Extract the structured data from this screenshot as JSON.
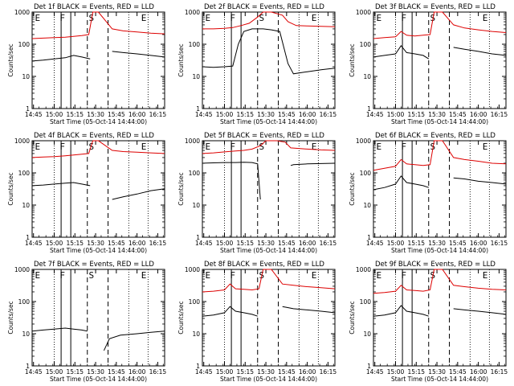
{
  "colors": {
    "events": "#000000",
    "lld": "#dd0000",
    "background": "#ffffff"
  },
  "chart_data": [
    {
      "type": "line",
      "title": "Det 1f BLACK = Events, RED = LLD",
      "xlabel": "Start Time (05-Oct-14 14:44:00)",
      "ylabel": "Counts/sec",
      "yscale": "log",
      "ylim": [
        1,
        1000
      ],
      "xlim": [
        "14:44",
        "16:20"
      ],
      "xticks": [
        "14:45",
        "15:00",
        "15:15",
        "15:30",
        "15:45",
        "16:00",
        "16:15"
      ],
      "yticks": [
        "1",
        "10",
        "100",
        "1000"
      ],
      "markers": [
        {
          "label": "E",
          "time": "14:46"
        },
        {
          "label": "F",
          "time": "15:04"
        },
        {
          "label": "S",
          "time": "15:25"
        },
        {
          "label": "E",
          "time": "16:03"
        }
      ],
      "series": [
        {
          "name": "Events",
          "color": "#000000",
          "x": [
            "14:44",
            "14:52",
            "15:00",
            "15:08",
            "15:14",
            "15:20",
            "15:26",
            "15:34",
            "15:36",
            "15:42",
            "15:50",
            "16:00",
            "16:10",
            "16:20"
          ],
          "y": [
            30,
            32,
            35,
            38,
            45,
            40,
            35,
            null,
            null,
            60,
            55,
            50,
            45,
            40
          ]
        },
        {
          "name": "LLD",
          "color": "#dd0000",
          "x": [
            "14:44",
            "14:52",
            "15:00",
            "15:08",
            "15:14",
            "15:20",
            "15:25",
            "15:28",
            "15:32",
            "15:42",
            "15:50",
            "16:00",
            "16:10",
            "16:20"
          ],
          "y": [
            150,
            155,
            160,
            165,
            175,
            185,
            200,
            1000,
            1000,
            300,
            260,
            240,
            220,
            210
          ]
        }
      ]
    },
    {
      "type": "line",
      "title": "Det 2f BLACK = Events, RED = LLD",
      "xlabel": "Start Time (05-Oct-14 14:44:00)",
      "ylabel": "Counts/sec",
      "yscale": "log",
      "ylim": [
        1,
        1000
      ],
      "xlim": [
        "14:44",
        "16:20"
      ],
      "xticks": [
        "14:45",
        "15:00",
        "15:15",
        "15:30",
        "15:45",
        "16:00",
        "16:15"
      ],
      "yticks": [
        "1",
        "10",
        "100",
        "1000"
      ],
      "markers": [
        {
          "label": "E",
          "time": "14:46"
        },
        {
          "label": "F",
          "time": "15:04"
        },
        {
          "label": "S",
          "time": "15:25"
        },
        {
          "label": "E",
          "time": "16:03"
        }
      ],
      "series": [
        {
          "name": "Events",
          "color": "#000000",
          "x": [
            "14:44",
            "14:52",
            "15:00",
            "15:06",
            "15:10",
            "15:14",
            "15:20",
            "15:28",
            "15:34",
            "15:40",
            "15:46",
            "15:50",
            "16:00",
            "16:10",
            "16:20"
          ],
          "y": [
            20,
            19,
            20,
            21,
            100,
            250,
            300,
            300,
            280,
            250,
            25,
            12,
            14,
            16,
            18
          ]
        },
        {
          "name": "LLD",
          "color": "#dd0000",
          "x": [
            "14:44",
            "14:52",
            "15:00",
            "15:06",
            "15:12",
            "15:18",
            "15:24",
            "15:28",
            "15:34",
            "15:42",
            "15:46",
            "15:52",
            "16:00",
            "16:10",
            "16:20"
          ],
          "y": [
            300,
            300,
            310,
            330,
            380,
            450,
            700,
            1000,
            1000,
            800,
            500,
            380,
            370,
            360,
            350
          ]
        }
      ]
    },
    {
      "type": "line",
      "title": "Det 3f BLACK = Events, RED = LLD",
      "xlabel": "Start Time (05-Oct-14 14:44:00)",
      "ylabel": "Counts/sec",
      "yscale": "log",
      "ylim": [
        1,
        1000
      ],
      "xlim": [
        "14:44",
        "16:20"
      ],
      "xticks": [
        "14:45",
        "15:00",
        "15:15",
        "15:30",
        "15:45",
        "16:00",
        "16:15"
      ],
      "yticks": [
        "1",
        "10",
        "100",
        "1000"
      ],
      "markers": [
        {
          "label": "E",
          "time": "14:46"
        },
        {
          "label": "F",
          "time": "15:04"
        },
        {
          "label": "S",
          "time": "15:25"
        },
        {
          "label": "E",
          "time": "16:03"
        }
      ],
      "series": [
        {
          "name": "Events",
          "color": "#000000",
          "x": [
            "14:44",
            "14:52",
            "15:00",
            "15:04",
            "15:08",
            "15:14",
            "15:20",
            "15:24",
            "15:34",
            "15:36",
            "15:42",
            "15:50",
            "16:00",
            "16:10",
            "16:20"
          ],
          "y": [
            40,
            45,
            50,
            90,
            55,
            50,
            45,
            35,
            null,
            null,
            80,
            70,
            60,
            50,
            45
          ]
        },
        {
          "name": "LLD",
          "color": "#dd0000",
          "x": [
            "14:44",
            "14:52",
            "15:00",
            "15:04",
            "15:08",
            "15:14",
            "15:20",
            "15:25",
            "15:28",
            "15:34",
            "15:42",
            "15:50",
            "16:00",
            "16:10",
            "16:20"
          ],
          "y": [
            150,
            160,
            170,
            250,
            190,
            180,
            190,
            200,
            1000,
            1000,
            400,
            320,
            280,
            250,
            230
          ]
        }
      ]
    },
    {
      "type": "line",
      "title": "Det 4f BLACK = Events, RED = LLD",
      "xlabel": "Start Time (05-Oct-14 14:44:00)",
      "ylabel": "Counts/sec",
      "yscale": "log",
      "ylim": [
        1,
        1000
      ],
      "xlim": [
        "14:44",
        "16:20"
      ],
      "xticks": [
        "14:45",
        "15:00",
        "15:15",
        "15:30",
        "15:45",
        "16:00",
        "16:15"
      ],
      "yticks": [
        "1",
        "10",
        "100",
        "1000"
      ],
      "markers": [
        {
          "label": "E",
          "time": "14:46"
        },
        {
          "label": "F",
          "time": "15:04"
        },
        {
          "label": "S",
          "time": "15:25"
        },
        {
          "label": "E",
          "time": "16:03"
        }
      ],
      "series": [
        {
          "name": "Events",
          "color": "#000000",
          "x": [
            "14:44",
            "14:52",
            "15:00",
            "15:08",
            "15:14",
            "15:20",
            "15:26",
            "15:34",
            "15:36",
            "15:42",
            "15:50",
            "16:00",
            "16:10",
            "16:20"
          ],
          "y": [
            40,
            42,
            45,
            48,
            50,
            45,
            40,
            null,
            null,
            15,
            18,
            22,
            28,
            32
          ]
        },
        {
          "name": "LLD",
          "color": "#dd0000",
          "x": [
            "14:44",
            "14:52",
            "15:00",
            "15:08",
            "15:14",
            "15:20",
            "15:25",
            "15:28",
            "15:32",
            "15:42",
            "15:50",
            "16:00",
            "16:10",
            "16:20"
          ],
          "y": [
            300,
            310,
            320,
            340,
            360,
            380,
            400,
            1000,
            1000,
            500,
            460,
            440,
            420,
            400
          ]
        }
      ]
    },
    {
      "type": "line",
      "title": "Det 5f BLACK = Events, RED = LLD",
      "xlabel": "Start Time (05-Oct-14 14:44:00)",
      "ylabel": "Counts/sec",
      "yscale": "log",
      "ylim": [
        1,
        1000
      ],
      "xlim": [
        "14:44",
        "16:20"
      ],
      "xticks": [
        "14:45",
        "15:00",
        "15:15",
        "15:30",
        "15:45",
        "16:00",
        "16:15"
      ],
      "yticks": [
        "1",
        "10",
        "100",
        "1000"
      ],
      "markers": [
        {
          "label": "E",
          "time": "14:46"
        },
        {
          "label": "F",
          "time": "15:04"
        },
        {
          "label": "S",
          "time": "15:25"
        },
        {
          "label": "E",
          "time": "16:03"
        }
      ],
      "series": [
        {
          "name": "Events",
          "color": "#000000",
          "x": [
            "14:44",
            "14:52",
            "15:00",
            "15:08",
            "15:14",
            "15:20",
            "15:24",
            "15:26",
            "15:44",
            "15:48",
            "15:50",
            "16:00",
            "16:10",
            "16:20"
          ],
          "y": [
            200,
            205,
            210,
            210,
            215,
            210,
            190,
            15,
            null,
            170,
            180,
            190,
            195,
            200
          ]
        },
        {
          "name": "LLD",
          "color": "#dd0000",
          "x": [
            "14:44",
            "14:52",
            "15:00",
            "15:08",
            "15:14",
            "15:20",
            "15:26",
            "15:30",
            "15:38",
            "15:44",
            "15:48",
            "16:00",
            "16:10",
            "16:20"
          ],
          "y": [
            400,
            420,
            450,
            480,
            500,
            550,
            700,
            1000,
            1000,
            900,
            600,
            550,
            520,
            500
          ]
        }
      ]
    },
    {
      "type": "line",
      "title": "Det 6f BLACK = Events, RED = LLD",
      "xlabel": "Start Time (05-Oct-14 14:44:00)",
      "ylabel": "Counts/sec",
      "yscale": "log",
      "ylim": [
        1,
        1000
      ],
      "xlim": [
        "14:44",
        "16:20"
      ],
      "xticks": [
        "14:45",
        "15:00",
        "15:15",
        "15:30",
        "15:45",
        "16:00",
        "16:15"
      ],
      "yticks": [
        "1",
        "10",
        "100",
        "1000"
      ],
      "markers": [
        {
          "label": "E",
          "time": "14:46"
        },
        {
          "label": "F",
          "time": "15:04"
        },
        {
          "label": "S",
          "time": "15:25"
        },
        {
          "label": "E",
          "time": "16:03"
        }
      ],
      "series": [
        {
          "name": "Events",
          "color": "#000000",
          "x": [
            "14:44",
            "14:52",
            "15:00",
            "15:04",
            "15:08",
            "15:14",
            "15:20",
            "15:24",
            "15:34",
            "15:36",
            "15:42",
            "15:50",
            "16:00",
            "16:10",
            "16:20"
          ],
          "y": [
            30,
            35,
            45,
            80,
            50,
            45,
            40,
            35,
            null,
            null,
            70,
            65,
            55,
            50,
            45
          ]
        },
        {
          "name": "LLD",
          "color": "#dd0000",
          "x": [
            "14:44",
            "14:52",
            "15:00",
            "15:04",
            "15:08",
            "15:14",
            "15:20",
            "15:25",
            "15:28",
            "15:34",
            "15:42",
            "15:50",
            "16:00",
            "16:10",
            "16:20"
          ],
          "y": [
            120,
            140,
            160,
            260,
            190,
            180,
            170,
            180,
            1000,
            1000,
            300,
            260,
            230,
            200,
            190
          ]
        }
      ]
    },
    {
      "type": "line",
      "title": "Det 7f BLACK = Events, RED = LLD",
      "xlabel": "Start Time (05-Oct-14 14:44:00)",
      "ylabel": "Counts/sec",
      "yscale": "log",
      "ylim": [
        1,
        1000
      ],
      "xlim": [
        "14:44",
        "16:20"
      ],
      "xticks": [
        "14:45",
        "15:00",
        "15:15",
        "15:30",
        "15:45",
        "16:00",
        "16:15"
      ],
      "yticks": [
        "1",
        "10",
        "100",
        "1000"
      ],
      "markers": [
        {
          "label": "E",
          "time": "14:46"
        },
        {
          "label": "F",
          "time": "15:04"
        },
        {
          "label": "S",
          "time": "15:25"
        },
        {
          "label": "E",
          "time": "16:03"
        }
      ],
      "series": [
        {
          "name": "Events",
          "color": "#000000",
          "x": [
            "14:44",
            "14:52",
            "15:00",
            "15:08",
            "15:14",
            "15:20",
            "15:24",
            "15:34",
            "15:36",
            "15:40",
            "15:48",
            "16:00",
            "16:10",
            "16:20"
          ],
          "y": [
            12,
            13,
            14,
            15,
            14,
            13,
            12,
            null,
            3,
            7,
            9,
            10,
            11,
            12
          ]
        }
      ]
    },
    {
      "type": "line",
      "title": "Det 8f BLACK = Events, RED = LLD",
      "xlabel": "Start Time (05-Oct-14 14:44:00)",
      "ylabel": "Counts/sec",
      "yscale": "log",
      "ylim": [
        1,
        1000
      ],
      "xlim": [
        "14:44",
        "16:20"
      ],
      "xticks": [
        "14:45",
        "15:00",
        "15:15",
        "15:30",
        "15:45",
        "16:00",
        "16:15"
      ],
      "yticks": [
        "1",
        "10",
        "100",
        "1000"
      ],
      "markers": [
        {
          "label": "E",
          "time": "14:46"
        },
        {
          "label": "F",
          "time": "15:04"
        },
        {
          "label": "S",
          "time": "15:25"
        },
        {
          "label": "E",
          "time": "16:03"
        }
      ],
      "series": [
        {
          "name": "Events",
          "color": "#000000",
          "x": [
            "14:44",
            "14:52",
            "15:00",
            "15:04",
            "15:08",
            "15:14",
            "15:20",
            "15:24",
            "15:34",
            "15:36",
            "15:42",
            "15:50",
            "16:00",
            "16:10",
            "16:20"
          ],
          "y": [
            35,
            38,
            45,
            70,
            50,
            45,
            40,
            35,
            null,
            null,
            70,
            60,
            55,
            50,
            45
          ]
        },
        {
          "name": "LLD",
          "color": "#dd0000",
          "x": [
            "14:44",
            "14:52",
            "15:00",
            "15:04",
            "15:08",
            "15:14",
            "15:20",
            "15:25",
            "15:28",
            "15:34",
            "15:42",
            "15:50",
            "16:00",
            "16:10",
            "16:20"
          ],
          "y": [
            200,
            210,
            230,
            350,
            250,
            240,
            230,
            250,
            1000,
            1000,
            350,
            320,
            290,
            270,
            250
          ]
        }
      ]
    },
    {
      "type": "line",
      "title": "Det 9f BLACK = Events, RED = LLD",
      "xlabel": "Start Time (05-Oct-14 14:44:00)",
      "ylabel": "Counts/sec",
      "yscale": "log",
      "ylim": [
        1,
        1000
      ],
      "xlim": [
        "14:44",
        "16:20"
      ],
      "xticks": [
        "14:45",
        "15:00",
        "15:15",
        "15:30",
        "15:45",
        "16:00",
        "16:15"
      ],
      "yticks": [
        "1",
        "10",
        "100",
        "1000"
      ],
      "markers": [
        {
          "label": "E",
          "time": "14:46"
        },
        {
          "label": "F",
          "time": "15:04"
        },
        {
          "label": "S",
          "time": "15:25"
        },
        {
          "label": "E",
          "time": "16:03"
        }
      ],
      "series": [
        {
          "name": "Events",
          "color": "#000000",
          "x": [
            "14:44",
            "14:52",
            "15:00",
            "15:04",
            "15:08",
            "15:14",
            "15:20",
            "15:24",
            "15:34",
            "15:36",
            "15:42",
            "15:50",
            "16:00",
            "16:10",
            "16:20"
          ],
          "y": [
            35,
            38,
            45,
            75,
            50,
            45,
            40,
            35,
            null,
            null,
            60,
            55,
            50,
            45,
            40
          ]
        },
        {
          "name": "LLD",
          "color": "#dd0000",
          "x": [
            "14:44",
            "14:52",
            "15:00",
            "15:04",
            "15:08",
            "15:14",
            "15:20",
            "15:25",
            "15:28",
            "15:34",
            "15:42",
            "15:50",
            "16:00",
            "16:10",
            "16:20"
          ],
          "y": [
            180,
            190,
            210,
            320,
            230,
            220,
            210,
            230,
            1000,
            1000,
            320,
            290,
            260,
            240,
            230
          ]
        }
      ]
    }
  ]
}
